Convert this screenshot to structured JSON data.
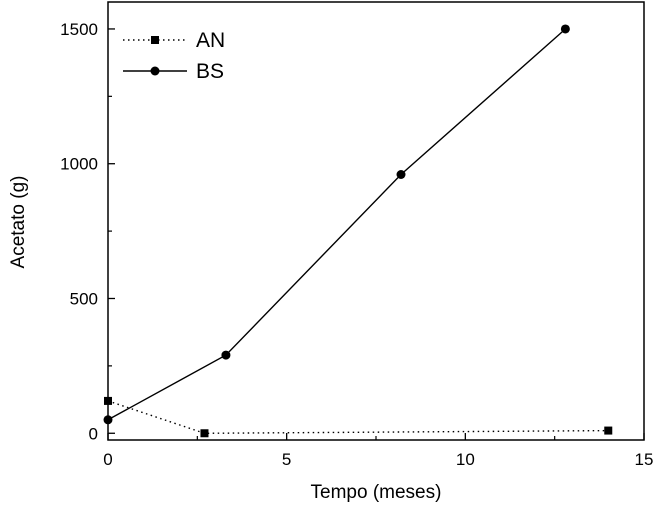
{
  "chart_data": {
    "type": "line",
    "xlabel": "Tempo (meses)",
    "ylabel": "Acetato (g)",
    "xlim": [
      0,
      15
    ],
    "ylim": [
      -25,
      1600
    ],
    "xticks": [
      0,
      5,
      10,
      15
    ],
    "yticks": [
      0,
      500,
      1000,
      1500
    ],
    "grid": false,
    "legend_position": "top-left",
    "series": [
      {
        "name": "AN",
        "marker": "square",
        "line_style": "dotted",
        "color": "#000000",
        "x": [
          0,
          2.7,
          14
        ],
        "y": [
          120,
          0,
          10
        ]
      },
      {
        "name": "BS",
        "marker": "circle",
        "line_style": "solid",
        "color": "#000000",
        "x": [
          0,
          3.3,
          8.2,
          12.8
        ],
        "y": [
          50,
          290,
          960,
          1500
        ]
      }
    ]
  }
}
